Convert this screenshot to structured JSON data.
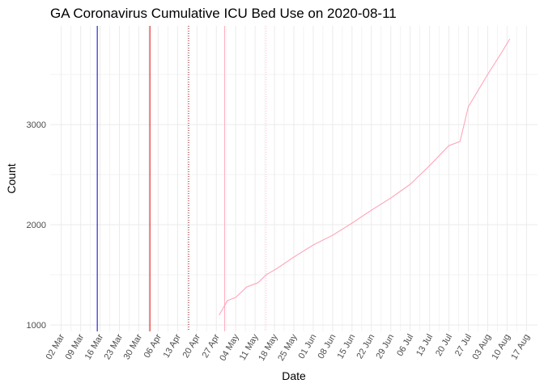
{
  "chart_data": {
    "type": "line",
    "title": "GA Coronavirus Cumulative ICU Bed Use on 2020-08-11",
    "x_label": "Date",
    "y_label": "Count",
    "x": [
      "28 Apr",
      "01 May",
      "04 May",
      "08 May",
      "12 May",
      "15 May",
      "19 May",
      "25 May",
      "01 Jun",
      "08 Jun",
      "15 Jun",
      "22 Jun",
      "29 Jun",
      "06 Jul",
      "13 Jul",
      "20 Jul",
      "24 Jul",
      "27 Jul",
      "03 Aug",
      "08 Aug",
      "11 Aug"
    ],
    "series": [
      {
        "name": "ICU",
        "color": "#ff9eb5",
        "values": [
          1097,
          1242,
          1274,
          1379,
          1420,
          1500,
          1565,
          1677,
          1798,
          1895,
          2016,
          2145,
          2266,
          2403,
          2589,
          2790,
          2830,
          3177,
          3500,
          3718,
          3855
        ]
      }
    ],
    "vlines": [
      {
        "x": "15 Mar",
        "color": "#0000cd",
        "dashed": false
      },
      {
        "x": "03 Apr",
        "color": "#e00000",
        "dashed": false
      },
      {
        "x": "17 Apr",
        "color": "#8b0000",
        "dashed": true
      },
      {
        "x": "30 Apr",
        "color": "#ffb0c0",
        "dashed": false
      },
      {
        "x": "15 May",
        "color": "#ffc0cb",
        "dashed": true
      }
    ],
    "xlim": [
      "27 Feb",
      "21 Aug"
    ],
    "xticks": [
      "02 Mar",
      "09 Mar",
      "16 Mar",
      "23 Mar",
      "30 Mar",
      "06 Apr",
      "13 Apr",
      "20 Apr",
      "27 Apr",
      "04 May",
      "11 May",
      "18 May",
      "25 May",
      "01 Jun",
      "08 Jun",
      "15 Jun",
      "22 Jun",
      "29 Jun",
      "06 Jul",
      "13 Jul",
      "20 Jul",
      "27 Jul",
      "03 Aug",
      "10 Aug",
      "17 Aug"
    ],
    "ylim": [
      935,
      3985
    ],
    "yticks": [
      1000,
      2000,
      3000
    ],
    "grid": true
  }
}
